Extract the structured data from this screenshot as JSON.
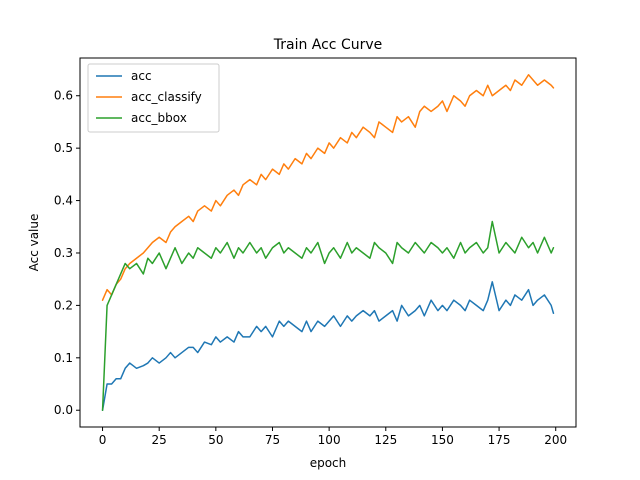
{
  "chart_data": {
    "type": "line",
    "title": "Train Acc Curve",
    "xlabel": "epoch",
    "ylabel": "Acc value",
    "xlim": [
      -9.95,
      208.95
    ],
    "ylim": [
      -0.032,
      0.672
    ],
    "x_ticks": [
      0,
      25,
      50,
      75,
      100,
      125,
      150,
      175,
      200
    ],
    "y_ticks": [
      0.0,
      0.1,
      0.2,
      0.3,
      0.4,
      0.5,
      0.6
    ],
    "y_tick_labels": [
      "0.0",
      "0.1",
      "0.2",
      "0.3",
      "0.4",
      "0.5",
      "0.6"
    ],
    "grid": false,
    "legend_position": "upper-left",
    "series": [
      {
        "name": "acc",
        "color": "#1f77b4",
        "x": [
          0,
          2,
          4,
          6,
          8,
          10,
          12,
          15,
          18,
          20,
          22,
          25,
          28,
          30,
          32,
          35,
          38,
          40,
          42,
          45,
          48,
          50,
          52,
          55,
          58,
          60,
          62,
          65,
          68,
          70,
          72,
          75,
          78,
          80,
          82,
          85,
          88,
          90,
          92,
          95,
          98,
          100,
          102,
          105,
          108,
          110,
          112,
          115,
          118,
          120,
          122,
          125,
          128,
          130,
          132,
          135,
          138,
          140,
          142,
          145,
          148,
          150,
          152,
          155,
          158,
          160,
          162,
          165,
          168,
          170,
          172,
          175,
          178,
          180,
          182,
          185,
          188,
          190,
          192,
          195,
          198,
          199
        ],
        "y": [
          0.0,
          0.05,
          0.05,
          0.06,
          0.06,
          0.08,
          0.09,
          0.08,
          0.085,
          0.09,
          0.1,
          0.09,
          0.1,
          0.11,
          0.1,
          0.11,
          0.12,
          0.12,
          0.11,
          0.13,
          0.125,
          0.14,
          0.13,
          0.14,
          0.13,
          0.15,
          0.14,
          0.14,
          0.16,
          0.15,
          0.16,
          0.14,
          0.17,
          0.16,
          0.17,
          0.16,
          0.15,
          0.17,
          0.15,
          0.17,
          0.16,
          0.17,
          0.18,
          0.16,
          0.18,
          0.17,
          0.18,
          0.19,
          0.18,
          0.19,
          0.17,
          0.18,
          0.19,
          0.17,
          0.2,
          0.18,
          0.19,
          0.2,
          0.18,
          0.21,
          0.19,
          0.2,
          0.19,
          0.21,
          0.2,
          0.19,
          0.21,
          0.2,
          0.19,
          0.21,
          0.245,
          0.19,
          0.21,
          0.2,
          0.22,
          0.21,
          0.23,
          0.2,
          0.21,
          0.22,
          0.2,
          0.185
        ]
      },
      {
        "name": "acc_classify",
        "color": "#ff7f0e",
        "x": [
          0,
          2,
          4,
          6,
          8,
          10,
          12,
          15,
          18,
          20,
          22,
          25,
          28,
          30,
          32,
          35,
          38,
          40,
          42,
          45,
          48,
          50,
          52,
          55,
          58,
          60,
          62,
          65,
          68,
          70,
          72,
          75,
          78,
          80,
          82,
          85,
          88,
          90,
          92,
          95,
          98,
          100,
          102,
          105,
          108,
          110,
          112,
          115,
          118,
          120,
          122,
          125,
          128,
          130,
          132,
          135,
          138,
          140,
          142,
          145,
          148,
          150,
          152,
          155,
          158,
          160,
          162,
          165,
          168,
          170,
          172,
          175,
          178,
          180,
          182,
          185,
          188,
          190,
          192,
          195,
          198,
          199
        ],
        "y": [
          0.21,
          0.23,
          0.22,
          0.24,
          0.25,
          0.27,
          0.28,
          0.29,
          0.3,
          0.31,
          0.32,
          0.33,
          0.32,
          0.34,
          0.35,
          0.36,
          0.37,
          0.36,
          0.38,
          0.39,
          0.38,
          0.4,
          0.39,
          0.41,
          0.42,
          0.41,
          0.43,
          0.44,
          0.43,
          0.45,
          0.44,
          0.46,
          0.45,
          0.47,
          0.46,
          0.48,
          0.47,
          0.49,
          0.48,
          0.5,
          0.49,
          0.51,
          0.5,
          0.52,
          0.51,
          0.53,
          0.52,
          0.54,
          0.53,
          0.52,
          0.55,
          0.54,
          0.53,
          0.56,
          0.55,
          0.56,
          0.54,
          0.57,
          0.58,
          0.57,
          0.58,
          0.59,
          0.57,
          0.6,
          0.59,
          0.58,
          0.6,
          0.61,
          0.6,
          0.62,
          0.6,
          0.61,
          0.62,
          0.61,
          0.63,
          0.62,
          0.64,
          0.63,
          0.62,
          0.63,
          0.62,
          0.615
        ]
      },
      {
        "name": "acc_bbox",
        "color": "#2ca02c",
        "x": [
          0,
          2,
          4,
          6,
          8,
          10,
          12,
          15,
          18,
          20,
          22,
          25,
          28,
          30,
          32,
          35,
          38,
          40,
          42,
          45,
          48,
          50,
          52,
          55,
          58,
          60,
          62,
          65,
          68,
          70,
          72,
          75,
          78,
          80,
          82,
          85,
          88,
          90,
          92,
          95,
          98,
          100,
          102,
          105,
          108,
          110,
          112,
          115,
          118,
          120,
          122,
          125,
          128,
          130,
          132,
          135,
          138,
          140,
          142,
          145,
          148,
          150,
          152,
          155,
          158,
          160,
          162,
          165,
          168,
          170,
          172,
          175,
          178,
          180,
          182,
          185,
          188,
          190,
          192,
          195,
          198,
          199
        ],
        "y": [
          0.0,
          0.2,
          0.22,
          0.24,
          0.26,
          0.28,
          0.27,
          0.28,
          0.26,
          0.29,
          0.28,
          0.3,
          0.27,
          0.29,
          0.31,
          0.28,
          0.3,
          0.29,
          0.31,
          0.3,
          0.29,
          0.31,
          0.3,
          0.32,
          0.29,
          0.31,
          0.3,
          0.32,
          0.3,
          0.31,
          0.29,
          0.31,
          0.32,
          0.3,
          0.31,
          0.3,
          0.29,
          0.31,
          0.3,
          0.32,
          0.28,
          0.3,
          0.31,
          0.29,
          0.32,
          0.3,
          0.31,
          0.3,
          0.29,
          0.32,
          0.31,
          0.3,
          0.28,
          0.32,
          0.31,
          0.3,
          0.32,
          0.31,
          0.3,
          0.32,
          0.31,
          0.3,
          0.31,
          0.29,
          0.32,
          0.3,
          0.31,
          0.32,
          0.3,
          0.31,
          0.36,
          0.3,
          0.32,
          0.31,
          0.3,
          0.33,
          0.31,
          0.32,
          0.3,
          0.33,
          0.3,
          0.31
        ]
      }
    ]
  }
}
